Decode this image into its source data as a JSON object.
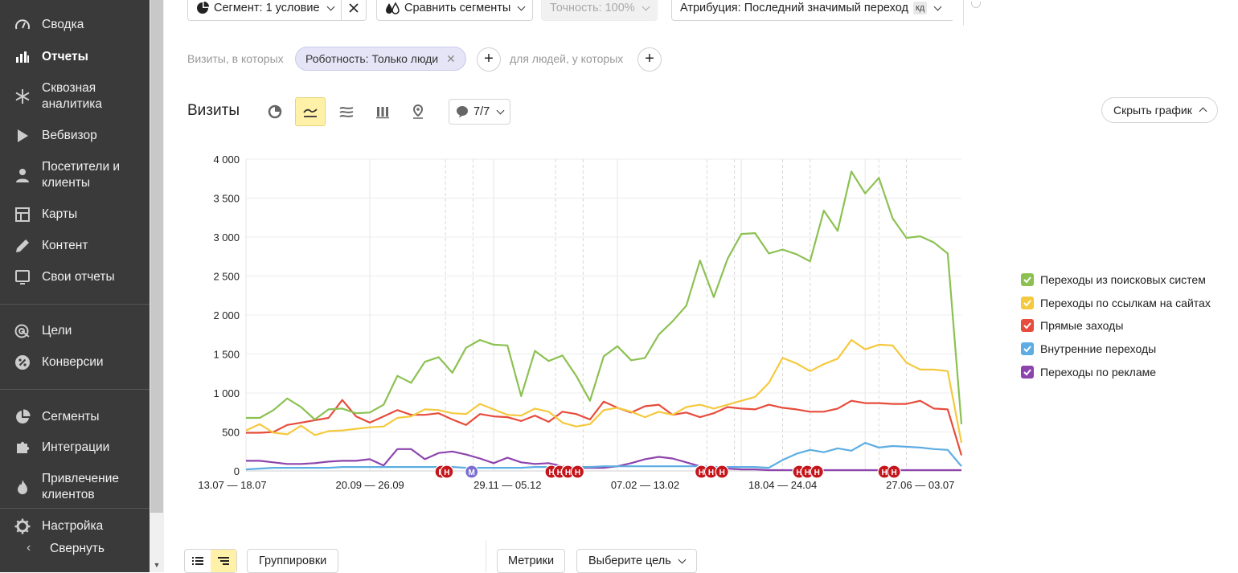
{
  "sidebar": {
    "items": [
      {
        "label": "Сводка",
        "icon": "speedometer-icon"
      },
      {
        "label": "Отчеты",
        "icon": "bar-chart-icon",
        "active": true
      },
      {
        "label": "Сквозная аналитика",
        "icon": "snowflake-icon"
      },
      {
        "label": "Вебвизор",
        "icon": "play-icon"
      },
      {
        "label": "Посетители и клиенты",
        "icon": "person-icon"
      },
      {
        "label": "Карты",
        "icon": "map-grid-icon"
      },
      {
        "label": "Контент",
        "icon": "pencil-icon"
      },
      {
        "label": "Свои отчеты",
        "icon": "monitor-icon"
      },
      {
        "label": "Цели",
        "icon": "target-icon"
      },
      {
        "label": "Конверсии",
        "icon": "percent-icon"
      },
      {
        "label": "Сегменты",
        "icon": "pie-icon"
      },
      {
        "label": "Интеграции",
        "icon": "puzzle-icon"
      },
      {
        "label": "Привлечение клиентов",
        "icon": "flame-icon"
      },
      {
        "label": "Настройка",
        "icon": "gear-icon"
      }
    ],
    "collapse_label": "Свернуть"
  },
  "toolbar": {
    "segment_label": "Сегмент: 1 условие",
    "compare_label": "Сравнить сегменты",
    "accuracy_label": "Точность: 100%",
    "attribution_label": "Атрибуция: Последний значимый переход",
    "attribution_badge": "кд"
  },
  "filter": {
    "visits_prefix": "Визиты, в которых",
    "chip_label": "Роботность: Только люди",
    "people_prefix": "для людей, у которых"
  },
  "report": {
    "title": "Визиты",
    "series_counter": "7/7",
    "hide_chart_label": "Скрыть график"
  },
  "bottom": {
    "groupings_label": "Группировки",
    "metrics_label": "Метрики",
    "goal_label": "Выберите цель"
  },
  "chart_data": {
    "type": "line",
    "ylim": [
      0,
      4000
    ],
    "yticks": [
      "4 000",
      "3 500",
      "3 000",
      "2 500",
      "2 000",
      "1 500",
      "1 000",
      "500",
      "0"
    ],
    "xtick_labels": [
      "13.07 — 18.07",
      "20.09 — 26.09",
      "29.11 — 05.12",
      "07.02 — 13.02",
      "18.04 — 24.04",
      "27.06 — 03.07"
    ],
    "grid": true,
    "legend_position": "right",
    "series": [
      {
        "name": "Переходы из поисковых систем",
        "color": "#8cc152",
        "values": [
          680,
          680,
          780,
          930,
          820,
          660,
          790,
          800,
          740,
          750,
          850,
          1220,
          1130,
          1400,
          1460,
          1260,
          1580,
          1680,
          1620,
          1610,
          960,
          1540,
          1410,
          1480,
          1220,
          900,
          1470,
          1600,
          1420,
          1450,
          1750,
          1920,
          2120,
          2700,
          2230,
          2720,
          3040,
          3050,
          2790,
          2840,
          2780,
          2690,
          3340,
          3080,
          3840,
          3560,
          3760,
          3240,
          2990,
          3010,
          2930,
          2790,
          600
        ]
      },
      {
        "name": "Переходы по ссылкам на сайтах",
        "color": "#f5c93e",
        "values": [
          520,
          600,
          490,
          470,
          580,
          460,
          510,
          520,
          540,
          560,
          570,
          680,
          700,
          790,
          780,
          740,
          730,
          860,
          790,
          720,
          710,
          800,
          760,
          620,
          570,
          600,
          780,
          810,
          760,
          690,
          760,
          720,
          820,
          850,
          800,
          850,
          900,
          950,
          1130,
          1450,
          1380,
          1280,
          1370,
          1440,
          1680,
          1560,
          1620,
          1610,
          1390,
          1300,
          1300,
          1280,
          360
        ]
      },
      {
        "name": "Прямые заходы",
        "color": "#e74c3c",
        "values": [
          490,
          490,
          500,
          590,
          620,
          650,
          680,
          910,
          700,
          620,
          700,
          780,
          720,
          720,
          740,
          660,
          590,
          730,
          700,
          690,
          640,
          710,
          630,
          760,
          730,
          660,
          890,
          810,
          750,
          830,
          850,
          720,
          750,
          690,
          740,
          820,
          800,
          790,
          850,
          810,
          790,
          760,
          760,
          800,
          900,
          870,
          870,
          860,
          860,
          900,
          800,
          790,
          200
        ]
      },
      {
        "name": "Внутренние переходы",
        "color": "#5dade2",
        "values": [
          20,
          30,
          40,
          40,
          40,
          40,
          40,
          50,
          50,
          50,
          50,
          50,
          50,
          50,
          50,
          50,
          40,
          40,
          40,
          40,
          40,
          50,
          50,
          50,
          50,
          50,
          60,
          60,
          60,
          60,
          60,
          60,
          60,
          60,
          50,
          50,
          50,
          50,
          40,
          140,
          220,
          270,
          240,
          290,
          260,
          360,
          300,
          320,
          310,
          300,
          280,
          270,
          60
        ]
      },
      {
        "name": "Переходы по рекламе",
        "color": "#8e44ad",
        "values": [
          130,
          130,
          110,
          90,
          90,
          100,
          120,
          130,
          130,
          150,
          70,
          280,
          280,
          150,
          230,
          250,
          210,
          160,
          100,
          170,
          110,
          90,
          100,
          60,
          40,
          40,
          40,
          60,
          100,
          150,
          180,
          160,
          110,
          60,
          40,
          30,
          20,
          20,
          10,
          10,
          10,
          10,
          10,
          10,
          10,
          10,
          10,
          10,
          10,
          10,
          10,
          10,
          10
        ]
      }
    ],
    "annotation_markers": [
      "Н",
      "Н",
      "М",
      "Н",
      "Н",
      "Н",
      "Н",
      "Н",
      "Н",
      "Н",
      "Н",
      "Н",
      "Н",
      "Н",
      "Н"
    ]
  }
}
